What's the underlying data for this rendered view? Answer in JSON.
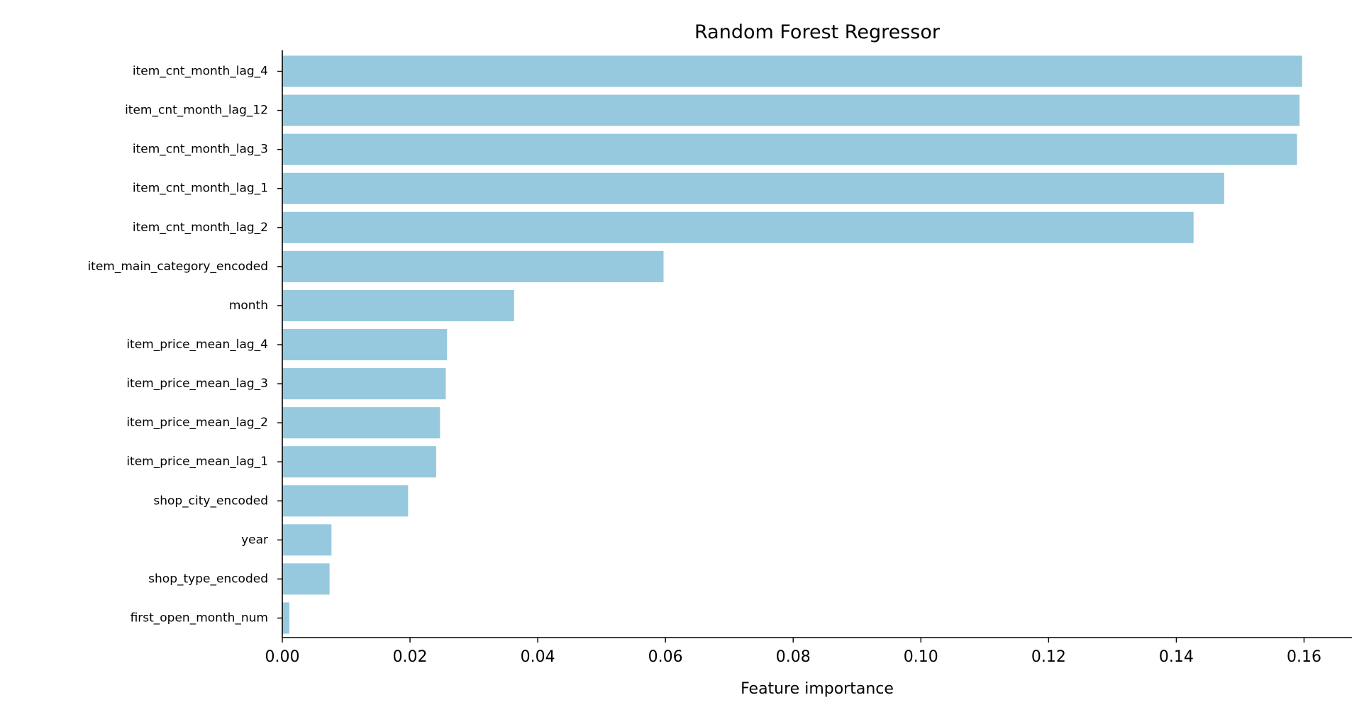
{
  "chart_data": {
    "type": "bar",
    "orientation": "horizontal",
    "title": "Random Forest Regressor",
    "xlabel": "Feature importance",
    "ylabel": "",
    "xlim": [
      0,
      0.1675
    ],
    "xticks": [
      "0.00",
      "0.02",
      "0.04",
      "0.06",
      "0.08",
      "0.10",
      "0.12",
      "0.14",
      "0.16"
    ],
    "grid": false,
    "bar_color": "#96c9de",
    "categories": [
      "item_cnt_month_lag_4",
      "item_cnt_month_lag_12",
      "item_cnt_month_lag_3",
      "item_cnt_month_lag_1",
      "item_cnt_month_lag_2",
      "item_main_category_encoded",
      "month",
      "item_price_mean_lag_4",
      "item_price_mean_lag_3",
      "item_price_mean_lag_2",
      "item_price_mean_lag_1",
      "shop_city_encoded",
      "year",
      "shop_type_encoded",
      "first_open_month_num"
    ],
    "values": [
      0.1597,
      0.1593,
      0.1589,
      0.1475,
      0.1427,
      0.0597,
      0.0363,
      0.0258,
      0.0256,
      0.0247,
      0.0241,
      0.0197,
      0.0077,
      0.0074,
      0.0011
    ]
  }
}
